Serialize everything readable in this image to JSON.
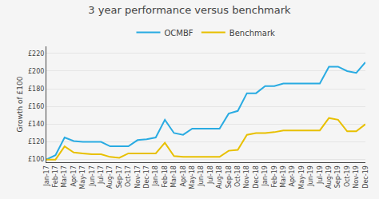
{
  "chart_data": {
    "type": "line",
    "title": "3 year performance versus benchmark",
    "ylabel": "Growth of £100",
    "categories": [
      "Jan-17",
      "Feb-17",
      "Mar-17",
      "Apr-17",
      "May-17",
      "Jun-17",
      "Jul-17",
      "Aug-17",
      "Sep-17",
      "Oct-17",
      "Nov-17",
      "Dec-17",
      "Jan-18",
      "Feb-18",
      "Mar-18",
      "Apr-18",
      "May-18",
      "Jun-18",
      "Jul-18",
      "Aug-18",
      "Sep-18",
      "Oct-18",
      "Nov-18",
      "Dec-18",
      "Jan-19",
      "Feb-19",
      "Mar-19",
      "Apr-19",
      "May-19",
      "Jun-19",
      "Jul-19",
      "Aug-19",
      "Sep-19",
      "Oct-19",
      "Nov-19",
      "Dec-19"
    ],
    "series": [
      {
        "name": "OCMBF",
        "color": "#29abe2",
        "values": [
          100,
          105,
          125,
          121,
          120,
          120,
          120,
          115,
          115,
          115,
          122,
          123,
          125,
          145,
          130,
          128,
          135,
          135,
          135,
          135,
          152,
          155,
          175,
          175,
          183,
          183,
          186,
          186,
          186,
          186,
          186,
          205,
          205,
          200,
          198,
          210
        ]
      },
      {
        "name": "Benchmark",
        "color": "#e8c000",
        "values": [
          100,
          100,
          115,
          108,
          107,
          106,
          106,
          103,
          102,
          107,
          107,
          107,
          107,
          119,
          104,
          103,
          103,
          103,
          103,
          103,
          110,
          111,
          128,
          130,
          130,
          131,
          133,
          133,
          133,
          133,
          133,
          147,
          145,
          132,
          132,
          140
        ]
      }
    ],
    "ylim": [
      97,
      228
    ],
    "yticks": [
      {
        "value": 100,
        "label": "£100"
      },
      {
        "value": 120,
        "label": "£120"
      },
      {
        "value": 140,
        "label": "£140"
      },
      {
        "value": 160,
        "label": "£160"
      },
      {
        "value": 180,
        "label": "£180"
      },
      {
        "value": 200,
        "label": "£200"
      },
      {
        "value": 220,
        "label": "£220"
      }
    ],
    "grid": true,
    "legend": "top"
  }
}
